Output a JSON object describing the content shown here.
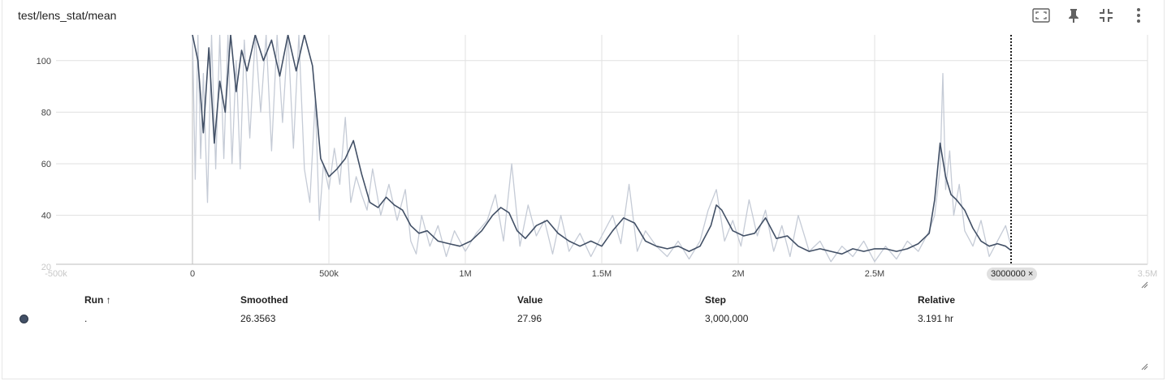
{
  "card": {
    "title": "test/lens_stat/mean"
  },
  "toolbar": {
    "buttons": [
      {
        "name": "fit-domain-button",
        "icon": "fit-screen-icon"
      },
      {
        "name": "pin-button",
        "icon": "pin-icon"
      },
      {
        "name": "collapse-button",
        "icon": "fullscreen-exit-icon"
      },
      {
        "name": "more-button",
        "icon": "more-vert-icon"
      }
    ]
  },
  "chart_data": {
    "type": "line",
    "xlim": [
      -500000,
      3500000
    ],
    "ylim": [
      21,
      110
    ],
    "x_ticks": [
      {
        "value": -500000,
        "label": "-500k",
        "faded": true
      },
      {
        "value": 0,
        "label": "0"
      },
      {
        "value": 500000,
        "label": "500k"
      },
      {
        "value": 1000000,
        "label": "1M"
      },
      {
        "value": 1500000,
        "label": "1.5M"
      },
      {
        "value": 2000000,
        "label": "2M"
      },
      {
        "value": 2500000,
        "label": "2.5M"
      },
      {
        "value": 3500000,
        "label": "3.5M",
        "faded": true
      }
    ],
    "y_ticks": [
      {
        "value": 20,
        "label": "20",
        "faded": true
      },
      {
        "value": 40,
        "label": "40"
      },
      {
        "value": 60,
        "label": "60"
      },
      {
        "value": 80,
        "label": "80"
      },
      {
        "value": 100,
        "label": "100"
      }
    ],
    "grid": true,
    "colors": {
      "raw": "#c5cbd6",
      "smoothed": "#425066",
      "grid": "#e0e0e0"
    },
    "series": [
      {
        "role": "smoothed",
        "x": [
          0,
          20000,
          40000,
          60000,
          80000,
          100000,
          120000,
          140000,
          160000,
          180000,
          200000,
          230000,
          260000,
          290000,
          320000,
          350000,
          380000,
          410000,
          440000,
          470000,
          500000,
          530000,
          560000,
          590000,
          620000,
          650000,
          680000,
          710000,
          740000,
          770000,
          800000,
          830000,
          860000,
          900000,
          940000,
          980000,
          1020000,
          1060000,
          1100000,
          1130000,
          1160000,
          1190000,
          1220000,
          1260000,
          1300000,
          1340000,
          1380000,
          1420000,
          1460000,
          1500000,
          1540000,
          1580000,
          1620000,
          1660000,
          1700000,
          1740000,
          1780000,
          1820000,
          1860000,
          1900000,
          1920000,
          1940000,
          1980000,
          2020000,
          2060000,
          2100000,
          2140000,
          2180000,
          2220000,
          2260000,
          2300000,
          2340000,
          2380000,
          2420000,
          2460000,
          2500000,
          2540000,
          2580000,
          2620000,
          2660000,
          2700000,
          2720000,
          2740000,
          2760000,
          2780000,
          2800000,
          2830000,
          2860000,
          2890000,
          2920000,
          2950000,
          2980000,
          3000000
        ],
        "y": [
          110,
          100,
          72,
          105,
          68,
          92,
          80,
          110,
          88,
          104,
          96,
          110,
          100,
          108,
          94,
          110,
          96,
          110,
          98,
          62,
          55,
          58,
          62,
          69,
          56,
          45,
          43,
          47,
          44,
          42,
          36,
          33,
          34,
          30,
          29,
          28,
          30,
          34,
          40,
          43,
          41,
          34,
          31,
          36,
          38,
          33,
          30,
          28,
          30,
          28,
          34,
          39,
          37,
          30,
          28,
          27,
          28,
          26,
          28,
          36,
          44,
          42,
          34,
          32,
          33,
          39,
          31,
          32,
          28,
          26,
          27,
          26,
          25,
          27,
          26,
          27,
          27,
          26,
          27,
          29,
          33,
          46,
          68,
          55,
          48,
          46,
          42,
          35,
          30,
          28,
          29,
          28,
          26.36
        ]
      },
      {
        "role": "raw",
        "x": [
          0,
          10000,
          20000,
          30000,
          40000,
          55000,
          70000,
          85000,
          100000,
          115000,
          130000,
          145000,
          160000,
          175000,
          190000,
          210000,
          230000,
          250000,
          270000,
          290000,
          310000,
          330000,
          350000,
          370000,
          390000,
          410000,
          430000,
          450000,
          465000,
          480000,
          500000,
          520000,
          540000,
          560000,
          580000,
          600000,
          620000,
          640000,
          660000,
          690000,
          720000,
          750000,
          780000,
          800000,
          820000,
          840000,
          870000,
          900000,
          930000,
          960000,
          1000000,
          1040000,
          1080000,
          1110000,
          1140000,
          1170000,
          1200000,
          1230000,
          1260000,
          1290000,
          1320000,
          1350000,
          1380000,
          1420000,
          1460000,
          1500000,
          1540000,
          1570000,
          1600000,
          1630000,
          1660000,
          1700000,
          1740000,
          1780000,
          1820000,
          1860000,
          1890000,
          1920000,
          1950000,
          1980000,
          2010000,
          2040000,
          2070000,
          2100000,
          2130000,
          2160000,
          2190000,
          2220000,
          2260000,
          2300000,
          2340000,
          2380000,
          2420000,
          2460000,
          2500000,
          2540000,
          2580000,
          2620000,
          2660000,
          2700000,
          2720000,
          2740000,
          2750000,
          2760000,
          2775000,
          2790000,
          2810000,
          2830000,
          2860000,
          2890000,
          2920000,
          2950000,
          2980000,
          3000000
        ],
        "y": [
          110,
          54,
          110,
          62,
          95,
          45,
          110,
          58,
          110,
          62,
          110,
          60,
          100,
          58,
          108,
          70,
          110,
          80,
          110,
          65,
          110,
          76,
          110,
          66,
          110,
          58,
          45,
          85,
          38,
          60,
          50,
          66,
          52,
          78,
          45,
          55,
          48,
          42,
          58,
          40,
          52,
          38,
          50,
          30,
          25,
          40,
          28,
          36,
          24,
          34,
          26,
          33,
          38,
          48,
          30,
          60,
          28,
          44,
          32,
          38,
          25,
          40,
          26,
          33,
          24,
          32,
          40,
          29,
          52,
          26,
          34,
          28,
          24,
          30,
          23,
          30,
          42,
          50,
          30,
          38,
          28,
          46,
          32,
          42,
          26,
          36,
          24,
          40,
          26,
          30,
          22,
          28,
          24,
          30,
          22,
          28,
          23,
          30,
          26,
          34,
          40,
          58,
          95,
          50,
          65,
          40,
          52,
          34,
          28,
          38,
          24,
          30,
          36,
          27.96
        ]
      }
    ],
    "step_marker": {
      "value": 3000000,
      "label": "3000000",
      "close": "×"
    }
  },
  "table": {
    "headers": {
      "run": "Run",
      "sort_icon": "↑",
      "smoothed": "Smoothed",
      "value": "Value",
      "step": "Step",
      "relative": "Relative"
    },
    "rows": [
      {
        "run": ".",
        "color": "#425066",
        "smoothed": "26.3563",
        "value": "27.96",
        "step": "3,000,000",
        "relative": "3.191 hr"
      }
    ]
  }
}
